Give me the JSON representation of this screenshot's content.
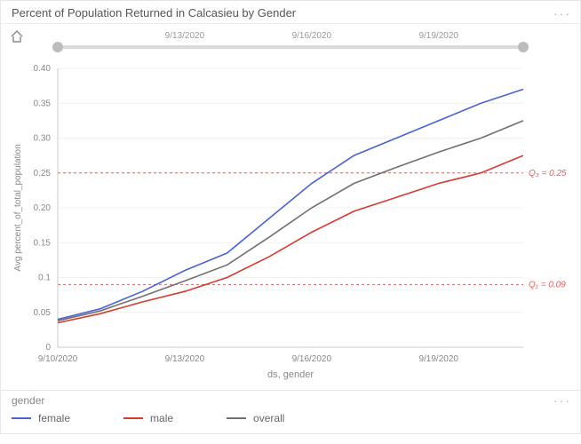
{
  "header": {
    "title": "Percent of Population Returned in Calcasieu by Gender",
    "menu_label": "···"
  },
  "chart": {
    "type": "line",
    "background_color": "#ffffff",
    "grid_color": "#f0f0f0",
    "axis_color": "#cccccc",
    "home_icon_name": "home-icon",
    "slider": {
      "track_color": "#d9d9d9",
      "handle_color": "#bcbcbc",
      "ticks": [
        "9/13/2020",
        "9/16/2020",
        "9/19/2020"
      ]
    },
    "ylabel": "Avg percent_of_total_population",
    "xlabel": "ds, gender",
    "ylim": [
      0,
      0.4
    ],
    "ytick_step": 0.05,
    "yticks": [
      "0",
      "0.05",
      "0.1",
      "0.15",
      "0.20",
      "0.25",
      "0.30",
      "0.35",
      "0.40"
    ],
    "x_domain": [
      0,
      11
    ],
    "x_ticks": [
      {
        "pos": 0,
        "label": "9/10/2020"
      },
      {
        "pos": 3,
        "label": "9/13/2020"
      },
      {
        "pos": 6,
        "label": "9/16/2020"
      },
      {
        "pos": 9,
        "label": "9/19/2020"
      }
    ],
    "reference_lines": [
      {
        "value": 0.25,
        "label": "Q₃ = 0.25",
        "color": "#e06060",
        "dash": "3,3"
      },
      {
        "value": 0.09,
        "label": "Q₁ = 0.09",
        "color": "#e06060",
        "dash": "3,3"
      }
    ],
    "series": [
      {
        "name": "female",
        "color": "#4a63d0",
        "width": 1.6,
        "values": [
          0.04,
          0.055,
          0.08,
          0.11,
          0.135,
          0.185,
          0.235,
          0.275,
          0.3,
          0.325,
          0.35,
          0.37
        ]
      },
      {
        "name": "male",
        "color": "#d63b2f",
        "width": 1.6,
        "values": [
          0.035,
          0.048,
          0.065,
          0.08,
          0.1,
          0.13,
          0.165,
          0.195,
          0.215,
          0.235,
          0.25,
          0.275
        ]
      },
      {
        "name": "overall",
        "color": "#707070",
        "width": 1.6,
        "values": [
          0.038,
          0.052,
          0.073,
          0.095,
          0.118,
          0.158,
          0.2,
          0.235,
          0.258,
          0.28,
          0.3,
          0.325
        ]
      }
    ]
  },
  "legend": {
    "title": "gender",
    "menu_label": "···",
    "items": [
      {
        "label": "female",
        "color": "#4a63d0"
      },
      {
        "label": "male",
        "color": "#d63b2f"
      },
      {
        "label": "overall",
        "color": "#707070"
      }
    ]
  }
}
